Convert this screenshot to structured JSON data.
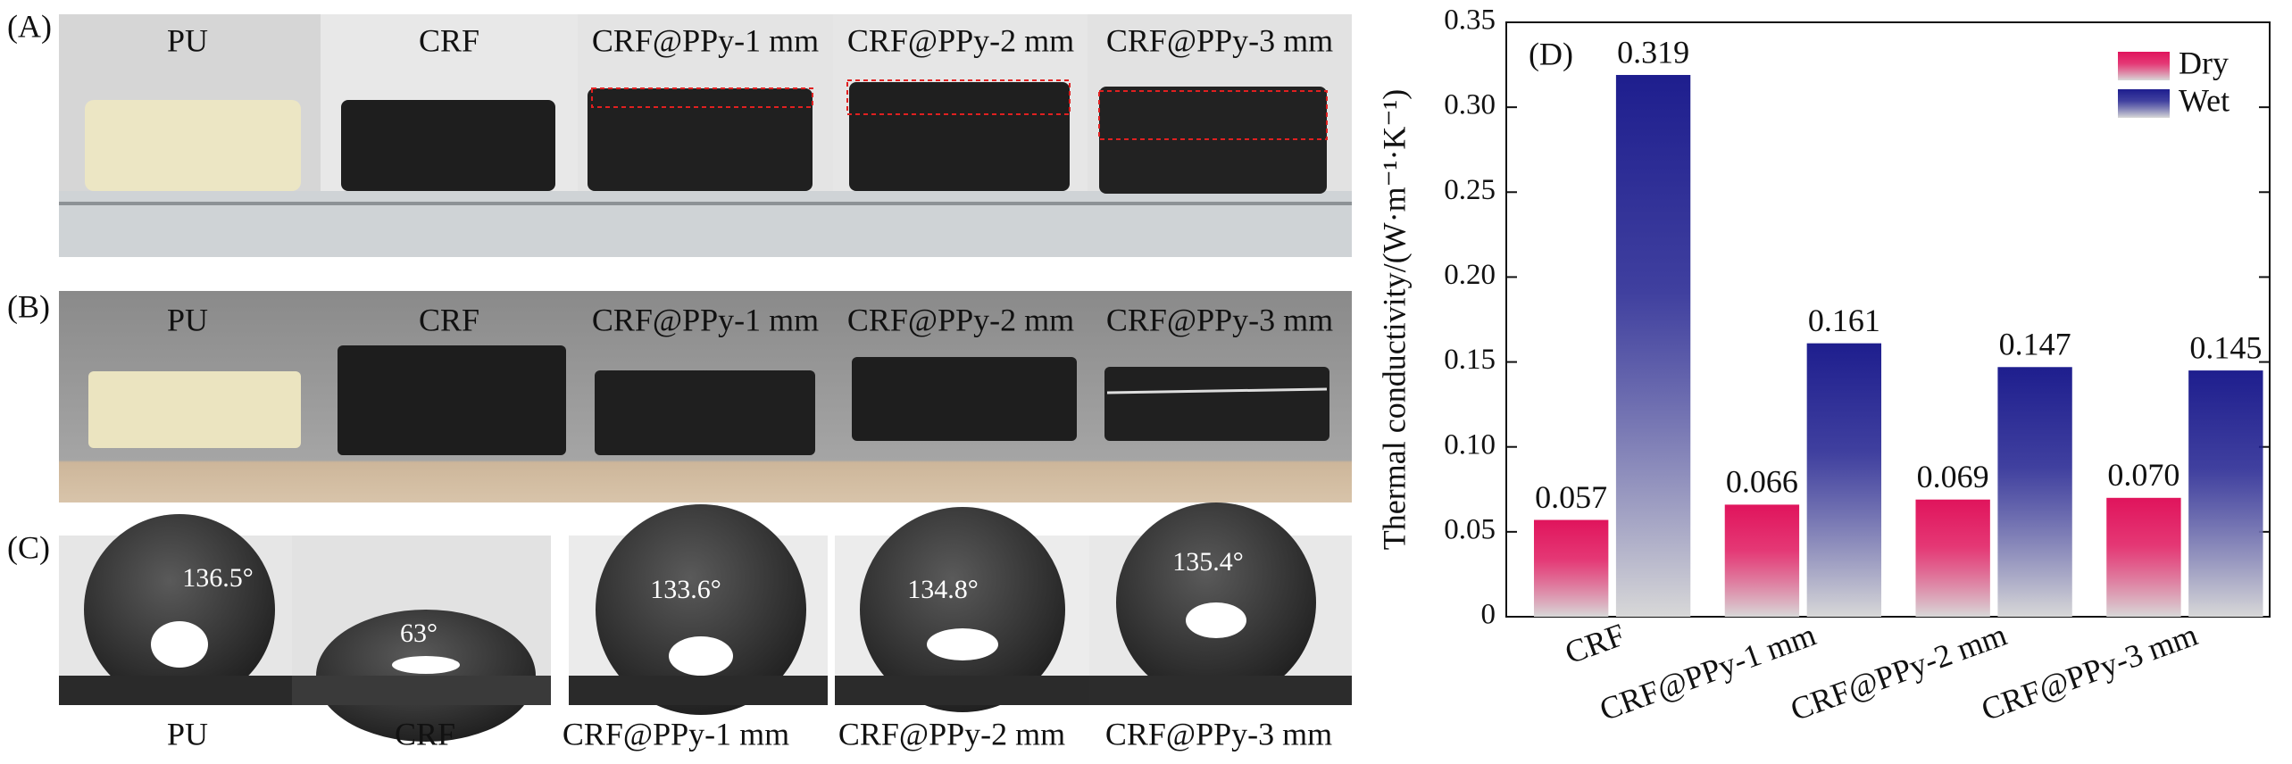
{
  "panels": {
    "letters": [
      "(A)",
      "(B)",
      "(C)"
    ],
    "row_a_labels": [
      "PU",
      "CRF",
      "CRF@PPy-1 mm",
      "CRF@PPy-2 mm",
      "CRF@PPy-3 mm"
    ],
    "row_b_labels": [
      "PU",
      "CRF",
      "CRF@PPy-1 mm",
      "CRF@PPy-2 mm",
      "CRF@PPy-3 mm"
    ],
    "contact_angles": [
      "136.5°",
      "63°",
      "133.6°",
      "134.8°",
      "135.4°"
    ],
    "row_c_labels": [
      "PU",
      "CRF",
      "CRF@PPy-1 mm",
      "CRF@PPy-2 mm",
      "CRF@PPy-3 mm"
    ]
  },
  "chart_data": {
    "type": "bar",
    "panel_label": "(D)",
    "y_label": "Thermal conductivity/(W·m⁻¹·K⁻¹)",
    "categories": [
      "CRF",
      "CRF@PPy-1 mm",
      "CRF@PPy-2 mm",
      "CRF@PPy-3 mm"
    ],
    "series": [
      {
        "name": "Dry",
        "color": "#e0145c",
        "values": [
          0.057,
          0.066,
          0.069,
          0.07
        ],
        "value_labels": [
          "0.057",
          "0.066",
          "0.069",
          "0.070"
        ]
      },
      {
        "name": "Wet",
        "color": "#1e1e8e",
        "values": [
          0.319,
          0.161,
          0.147,
          0.145
        ],
        "value_labels": [
          "0.319",
          "0.161",
          "0.147",
          "0.145"
        ]
      }
    ],
    "ylim": [
      0,
      0.35
    ],
    "yticks": [
      0,
      0.05,
      {
        "value": 0.1,
        "label": "0.10"
      },
      0.15,
      {
        "value": 0.2,
        "label": "0.20"
      },
      0.25,
      {
        "value": 0.3,
        "label": "0.30"
      },
      0.35
    ],
    "legend": "upper right"
  }
}
